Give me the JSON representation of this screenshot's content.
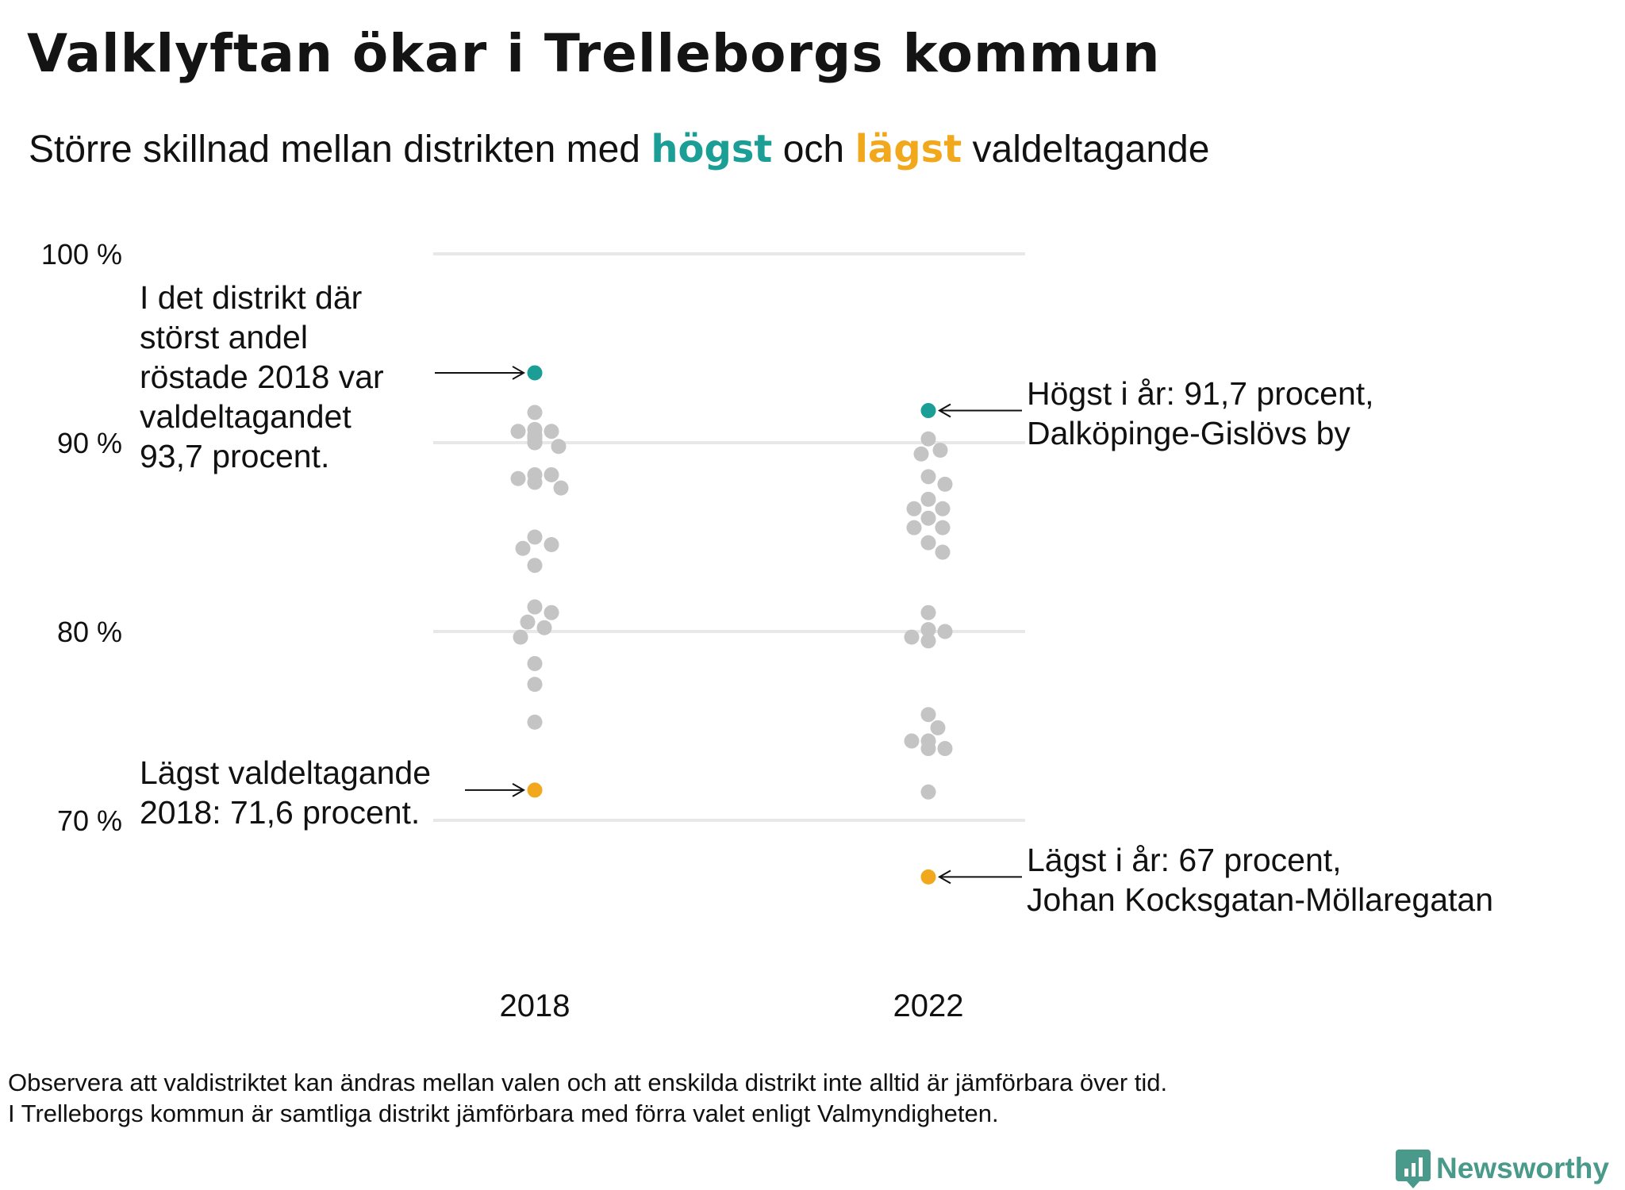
{
  "header": {
    "title": "Valklyftan ökar i Trelleborgs kommun",
    "subtitle": {
      "part1": "Större skillnad mellan distrikten med",
      "highest_word": "högst",
      "part2": "och",
      "lowest_word": "lägst",
      "part3": "valdeltagande"
    }
  },
  "colors": {
    "highest": "#1a9e96",
    "lowest": "#f2a81d",
    "other": "#c4c4c4"
  },
  "chart_data": {
    "type": "scatter",
    "ylim": [
      65,
      100
    ],
    "y_ticks": [
      {
        "value": 100,
        "label": "100 %"
      },
      {
        "value": 90,
        "label": "90 %"
      },
      {
        "value": 80,
        "label": "80 %"
      },
      {
        "value": 70,
        "label": "70 %"
      }
    ],
    "categories": [
      "2018",
      "2022"
    ],
    "series": [
      {
        "category": "2018",
        "highest": 93.7,
        "lowest": 71.6,
        "values": [
          93.7,
          91.6,
          90.7,
          90.4,
          90.6,
          90.2,
          90.0,
          89.8,
          90.3,
          90.6,
          90.0,
          88.3,
          88.3,
          88.1,
          87.9,
          87.6,
          85.0,
          84.6,
          84.4,
          83.5,
          81.3,
          81.0,
          80.5,
          80.2,
          79.7,
          78.3,
          77.2,
          75.2,
          71.6
        ]
      },
      {
        "category": "2022",
        "highest": 91.7,
        "lowest": 67.0,
        "values": [
          91.7,
          90.2,
          89.4,
          89.6,
          88.2,
          87.8,
          87.0,
          86.5,
          86.5,
          86.0,
          85.5,
          85.5,
          84.7,
          84.2,
          81.0,
          80.1,
          79.7,
          80.0,
          79.5,
          75.6,
          74.9,
          74.2,
          74.2,
          73.8,
          73.8,
          71.5,
          67.0
        ]
      }
    ],
    "annotations": {
      "high_2018": [
        "I det distrikt där",
        "störst andel",
        "röstade 2018 var",
        "valdeltagandet",
        "93,7 procent."
      ],
      "low_2018": [
        "Lägst valdeltagande",
        "2018: 71,6 procent."
      ],
      "high_2022": [
        "Högst i år: 91,7 procent,",
        "Dalköpinge-Gislövs by"
      ],
      "low_2022": [
        "Lägst i år: 67 procent,",
        "Johan Kocksgatan-Möllaregatan"
      ]
    }
  },
  "footer": {
    "lines": [
      "Observera att valdistriktet kan ändras mellan valen och att enskilda distrikt inte alltid är jämförbara över tid.",
      "I Trelleborgs kommun är samtliga distrikt jämförbara med förra valet enligt Valmyndigheten."
    ],
    "logo_text": "Newsworthy",
    "logo_icon": "bar-chart-bubble-icon"
  }
}
